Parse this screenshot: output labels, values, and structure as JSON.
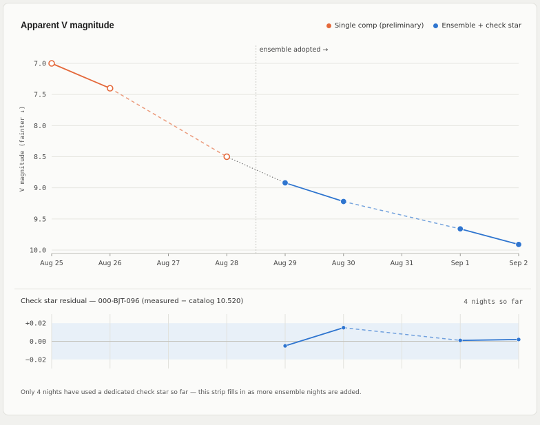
{
  "title": "Apparent V magnitude",
  "legend": [
    {
      "label": "Single comp (preliminary)",
      "color": "#e4683a"
    },
    {
      "label": "Ensemble + check star",
      "color": "#2f75cf"
    }
  ],
  "chart_data": [
    {
      "type": "line",
      "title": "Apparent V magnitude",
      "ylabel": "V magnitude (fainter ↓)",
      "xlabel": "",
      "y_inverted": true,
      "ylim": [
        7.0,
        10.0
      ],
      "yticks": [
        "7.0",
        "7.5",
        "8.0",
        "8.5",
        "9.0",
        "9.5",
        "10.0"
      ],
      "x_ticks": [
        "Aug 25",
        "Aug 26",
        "Aug 27",
        "Aug 28",
        "Aug 29",
        "Aug 30",
        "Aug 31",
        "Sep 1",
        "Sep 2"
      ],
      "annotation": {
        "x": "Aug 28.5",
        "text": "ensemble adopted →"
      },
      "grid": true,
      "legend_position": "top-right",
      "series": [
        {
          "name": "Single comp (preliminary)",
          "color": "#e4683a",
          "marker": "open-circle",
          "points": [
            {
              "x": "Aug 25",
              "y": 7.0
            },
            {
              "x": "Aug 26",
              "y": 7.4
            },
            {
              "x": "Aug 28",
              "y": 8.5
            }
          ]
        },
        {
          "name": "Ensemble + check star",
          "color": "#2f75cf",
          "marker": "filled-circle",
          "points": [
            {
              "x": "Aug 29",
              "y": 8.92
            },
            {
              "x": "Aug 30",
              "y": 9.22
            },
            {
              "x": "Sep 1",
              "y": 9.66
            },
            {
              "x": "Sep 2",
              "y": 9.91
            }
          ]
        }
      ]
    },
    {
      "type": "line",
      "title": "Check star residual — 000-BJT-096 (measured − catalog 10.520)",
      "ylim": [
        -0.03,
        0.03
      ],
      "yticks": [
        "+0.02",
        "0.00",
        "−0.02"
      ],
      "tolerance_band": [
        -0.02,
        0.02
      ],
      "series": [
        {
          "name": "Check star residual",
          "color": "#2f75cf",
          "points": [
            {
              "x": "Aug 29",
              "y": -0.005
            },
            {
              "x": "Aug 30",
              "y": 0.015
            },
            {
              "x": "Sep 1",
              "y": 0.001
            },
            {
              "x": "Sep 2",
              "y": 0.002
            }
          ]
        }
      ]
    }
  ],
  "residual": {
    "title": "Check star residual — 000-BJT-096 (measured − catalog 10.520)",
    "count": "4 nights so far"
  },
  "footnote": "Only 4 nights have used a dedicated check star so far — this strip fills in as more ensemble nights are added."
}
